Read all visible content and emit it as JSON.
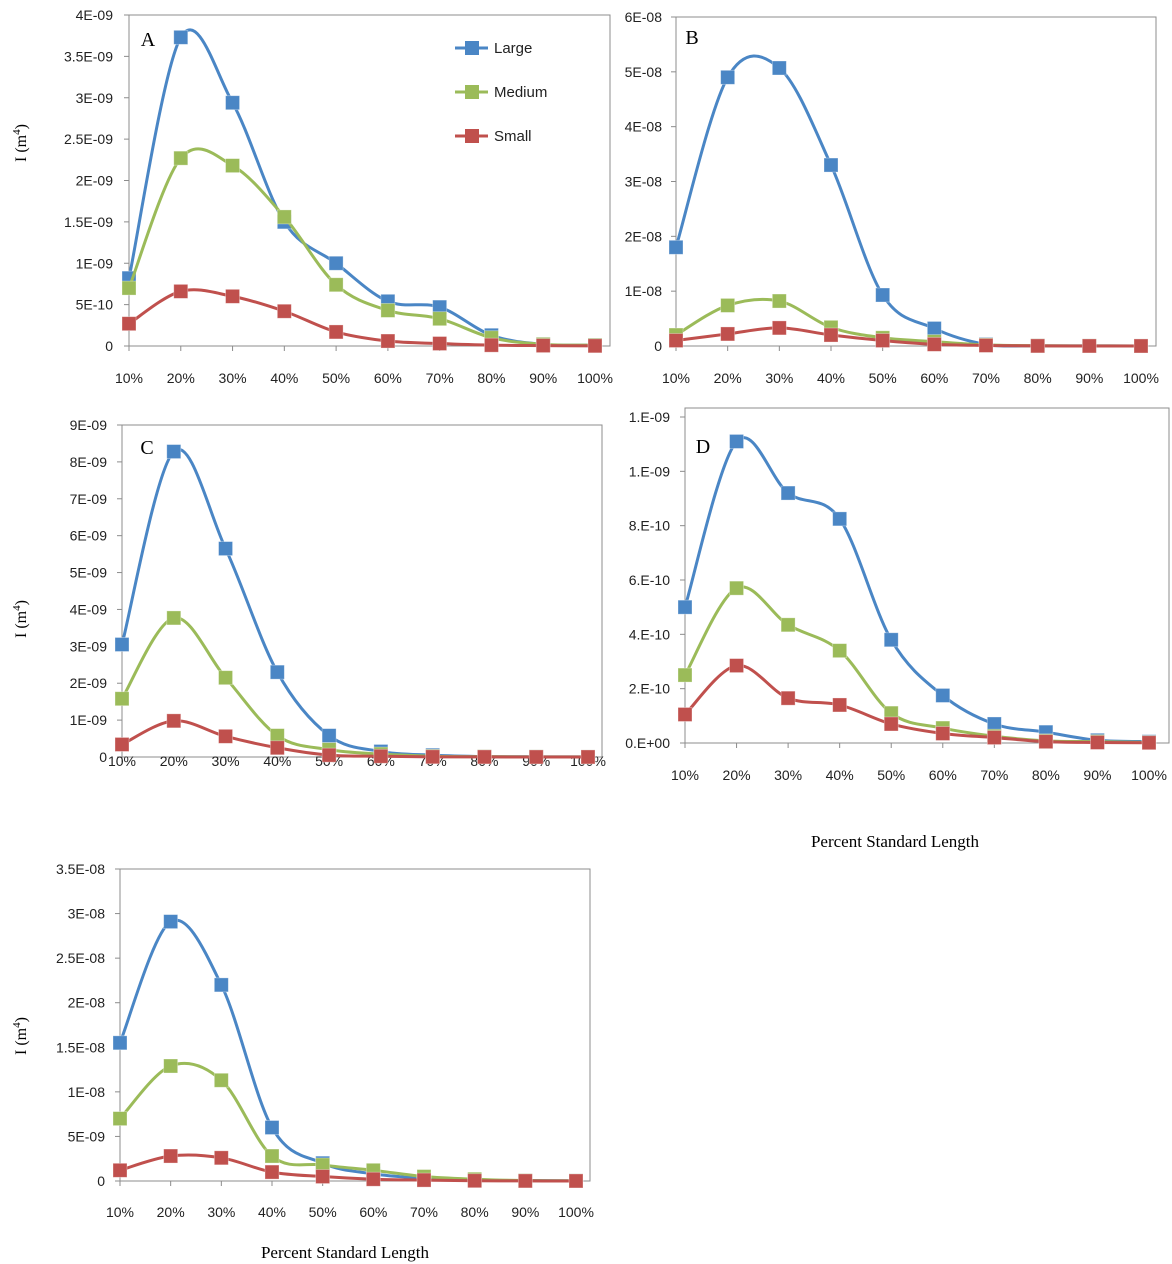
{
  "figure": {
    "x_axis_label": "Percent Standard Length",
    "y_axis_label": "I (m",
    "y_axis_label_sup": "4",
    "y_axis_label_close": ")"
  },
  "legend": [
    {
      "name": "Large",
      "color": "#4a86c5"
    },
    {
      "name": "Medium",
      "color": "#9bbb59"
    },
    {
      "name": "Small",
      "color": "#c0504d"
    }
  ],
  "chart_data": [
    {
      "type": "line",
      "panel": "A",
      "x": [
        "10%",
        "20%",
        "30%",
        "40%",
        "50%",
        "60%",
        "70%",
        "80%",
        "90%",
        "100%"
      ],
      "ylim": [
        0,
        4e-09
      ],
      "yticks": [
        "0",
        "5E-10",
        "1E-09",
        "1.5E-09",
        "2E-09",
        "2.5E-09",
        "3E-09",
        "3.5E-09",
        "4E-09"
      ],
      "grid": false,
      "legend_position": "top-right",
      "series": [
        {
          "name": "Large",
          "color": "#4a86c5",
          "values": [
            8.2e-10,
            3.73e-09,
            2.94e-09,
            1.5e-09,
            1e-09,
            5.4e-10,
            4.7e-10,
            1.3e-10,
            2e-11,
            1e-11
          ]
        },
        {
          "name": "Medium",
          "color": "#9bbb59",
          "values": [
            7e-10,
            2.27e-09,
            2.18e-09,
            1.56e-09,
            7.4e-10,
            4.3e-10,
            3.3e-10,
            1e-10,
            2e-11,
            1e-11
          ]
        },
        {
          "name": "Small",
          "color": "#c0504d",
          "values": [
            2.7e-10,
            6.6e-10,
            6e-10,
            4.2e-10,
            1.7e-10,
            6e-11,
            3e-11,
            1e-11,
            5e-12,
            2e-12
          ]
        }
      ]
    },
    {
      "type": "line",
      "panel": "B",
      "x": [
        "10%",
        "20%",
        "30%",
        "40%",
        "50%",
        "60%",
        "70%",
        "80%",
        "90%",
        "100%"
      ],
      "ylim": [
        0,
        6e-08
      ],
      "yticks": [
        "0",
        "1E-08",
        "2E-08",
        "3E-08",
        "4E-08",
        "5E-08",
        "6E-08"
      ],
      "grid": false,
      "series": [
        {
          "name": "Large",
          "color": "#4a86c5",
          "values": [
            1.8e-08,
            4.9e-08,
            5.07e-08,
            3.3e-08,
            9.3e-09,
            3.2e-09,
            3e-10,
            5e-11,
            2e-11,
            1e-11
          ]
        },
        {
          "name": "Medium",
          "color": "#9bbb59",
          "values": [
            2e-09,
            7.4e-09,
            8.2e-09,
            3.4e-09,
            1.5e-09,
            8e-10,
            2e-10,
            5e-11,
            2e-11,
            1e-11
          ]
        },
        {
          "name": "Small",
          "color": "#c0504d",
          "values": [
            1e-09,
            2.2e-09,
            3.3e-09,
            2e-09,
            1e-09,
            3e-10,
            1e-10,
            2e-11,
            1e-11,
            5e-12
          ]
        }
      ]
    },
    {
      "type": "line",
      "panel": "C",
      "x": [
        "10%",
        "20%",
        "30%",
        "40%",
        "50%",
        "60%",
        "70%",
        "80%",
        "90%",
        "100%"
      ],
      "ylim": [
        0,
        9e-09
      ],
      "yticks": [
        "0",
        "1E-09",
        "2E-09",
        "3E-09",
        "4E-09",
        "5E-09",
        "6E-09",
        "7E-09",
        "8E-09",
        "9E-09"
      ],
      "grid": false,
      "series": [
        {
          "name": "Large",
          "color": "#4a86c5",
          "values": [
            3.05e-09,
            8.28e-09,
            5.65e-09,
            2.3e-09,
            5.8e-10,
            1.5e-10,
            5e-11,
            1e-11,
            5e-12,
            2e-12
          ]
        },
        {
          "name": "Medium",
          "color": "#9bbb59",
          "values": [
            1.58e-09,
            3.77e-09,
            2.15e-09,
            5.8e-10,
            2e-10,
            8e-11,
            2e-11,
            1e-11,
            5e-12,
            2e-12
          ]
        },
        {
          "name": "Small",
          "color": "#c0504d",
          "values": [
            3.4e-10,
            9.8e-10,
            5.6e-10,
            2.5e-10,
            5e-11,
            2e-11,
            5e-12,
            2e-12,
            1e-12,
            1e-12
          ]
        }
      ]
    },
    {
      "type": "line",
      "panel": "D",
      "x": [
        "10%",
        "20%",
        "30%",
        "40%",
        "50%",
        "60%",
        "70%",
        "80%",
        "90%",
        "100%"
      ],
      "ylim": [
        0,
        1.2e-09
      ],
      "yticks": [
        "0.E+00",
        "2.E-10",
        "4.E-10",
        "6.E-10",
        "8.E-10",
        "1.E-09",
        "1.E-09"
      ],
      "grid": false,
      "series": [
        {
          "name": "Large",
          "color": "#4a86c5",
          "values": [
            5e-10,
            1.11e-09,
            9.2e-10,
            8.25e-10,
            3.8e-10,
            1.75e-10,
            7e-11,
            4e-11,
            1e-11,
            5e-12
          ]
        },
        {
          "name": "Medium",
          "color": "#9bbb59",
          "values": [
            2.5e-10,
            5.7e-10,
            4.35e-10,
            3.4e-10,
            1.1e-10,
            5.5e-11,
            2.5e-11,
            8e-12,
            5e-12,
            2e-12
          ]
        },
        {
          "name": "Small",
          "color": "#c0504d",
          "values": [
            1.05e-10,
            2.85e-10,
            1.65e-10,
            1.4e-10,
            7e-11,
            3.5e-11,
            2e-11,
            5e-12,
            2e-12,
            1e-12
          ]
        }
      ]
    },
    {
      "type": "line",
      "panel": "",
      "x": [
        "10%",
        "20%",
        "30%",
        "40%",
        "50%",
        "60%",
        "70%",
        "80%",
        "90%",
        "100%"
      ],
      "ylim": [
        0,
        3.5e-08
      ],
      "yticks": [
        "0",
        "5E-09",
        "1E-08",
        "1.5E-08",
        "2E-08",
        "2.5E-08",
        "3E-08",
        "3.5E-08"
      ],
      "grid": false,
      "series": [
        {
          "name": "Large",
          "color": "#4a86c5",
          "values": [
            1.55e-08,
            2.91e-08,
            2.2e-08,
            6e-09,
            2e-09,
            8e-10,
            3e-10,
            1e-10,
            5e-11,
            2e-11
          ]
        },
        {
          "name": "Medium",
          "color": "#9bbb59",
          "values": [
            7e-09,
            1.29e-08,
            1.13e-08,
            2.8e-09,
            1.8e-09,
            1.2e-09,
            5e-10,
            2e-10,
            5e-11,
            2e-11
          ]
        },
        {
          "name": "Small",
          "color": "#c0504d",
          "values": [
            1.2e-09,
            2.8e-09,
            2.6e-09,
            1e-09,
            5e-10,
            2e-10,
            1e-10,
            3e-11,
            1e-11,
            5e-12
          ]
        }
      ]
    }
  ]
}
